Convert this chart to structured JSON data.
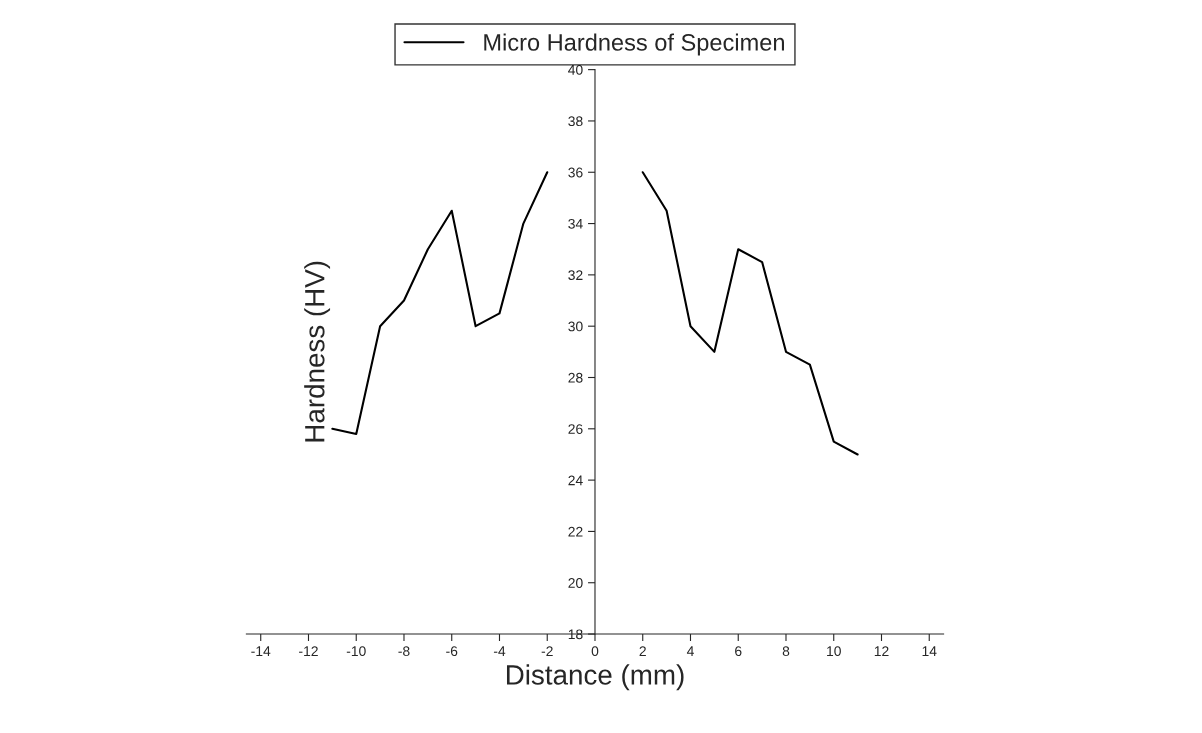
{
  "chart_data": {
    "type": "line",
    "xlabel": "Distance (mm)",
    "ylabel": "Hardness (HV)",
    "x": [
      -11,
      -10,
      -9,
      -8,
      -7,
      -6,
      -5,
      -4,
      -3,
      -2,
      -1,
      0,
      1,
      2,
      3,
      4,
      5,
      6,
      7,
      8,
      9,
      10,
      11
    ],
    "series": [
      {
        "name": "Micro Hardness of Specimen",
        "color": "#000000",
        "values": [
          26,
          25.8,
          30,
          31,
          33,
          34.5,
          30,
          30.5,
          34,
          36,
          null,
          null,
          null,
          36,
          34.5,
          30,
          29,
          33,
          32.5,
          29,
          28.5,
          25.5,
          25
        ]
      }
    ],
    "xlim": [
      -14.6,
      14.6
    ],
    "ylim": [
      18,
      40
    ],
    "xticks": [
      -14,
      -12,
      -10,
      -8,
      -6,
      -4,
      -2,
      0,
      2,
      4,
      6,
      8,
      10,
      12,
      14
    ],
    "yticks": [
      18,
      20,
      22,
      24,
      26,
      28,
      30,
      32,
      34,
      36,
      38,
      40
    ],
    "grid": false,
    "legend": "top",
    "marker": "none",
    "line_style": "solid"
  }
}
